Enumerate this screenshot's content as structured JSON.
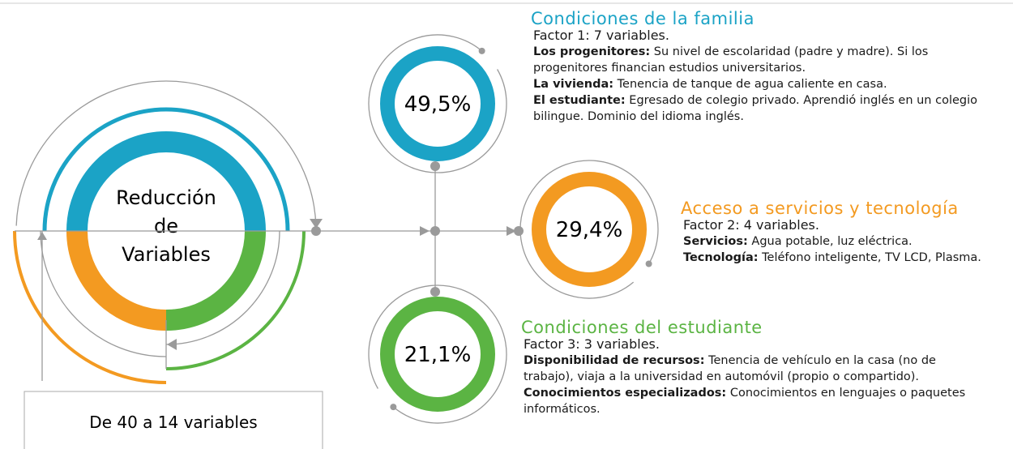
{
  "center": {
    "lines": [
      "Reducción",
      "de",
      "Variables"
    ]
  },
  "summary": "De 40 a 14 variables",
  "factors": [
    {
      "percent": "49,5%",
      "color": "#1ba3c6",
      "title": "Condiciones de la familia",
      "subtitle": "Factor 1: 7 variables.",
      "items": [
        {
          "label": "Los progenitores:",
          "text": "Su nivel de escolaridad (padre y madre). Si los progenitores financian estudios universitarios."
        },
        {
          "label": "La vivienda:",
          "text": "Tenencia de tanque de agua caliente en casa."
        },
        {
          "label": "El estudiante:",
          "text": "Egresado de colegio privado. Aprendió inglés en un colegio bilingue. Dominio del idioma inglés."
        }
      ]
    },
    {
      "percent": "29,4%",
      "color": "#f39a21",
      "title": "Acceso a servicios y tecnología",
      "subtitle": "Factor 2: 4 variables.",
      "items": [
        {
          "label": "Servicios:",
          "text": "Agua potable, luz eléctrica."
        },
        {
          "label": "Tecnología:",
          "text": "Teléfono inteligente, TV LCD, Plasma."
        }
      ]
    },
    {
      "percent": "21,1%",
      "color": "#5bb443",
      "title": "Condiciones del estudiante",
      "subtitle": "Factor 3: 3 variables.",
      "items": [
        {
          "label": "Disponibilidad de recursos:",
          "text": "Tenencia de vehículo en la casa (no de trabajo), viaja a la universidad en automóvil (propio o compartido)."
        },
        {
          "label": "Conocimientos especializados:",
          "text": "Conocimientos en lenguajes o paquetes informáticos."
        }
      ]
    }
  ]
}
